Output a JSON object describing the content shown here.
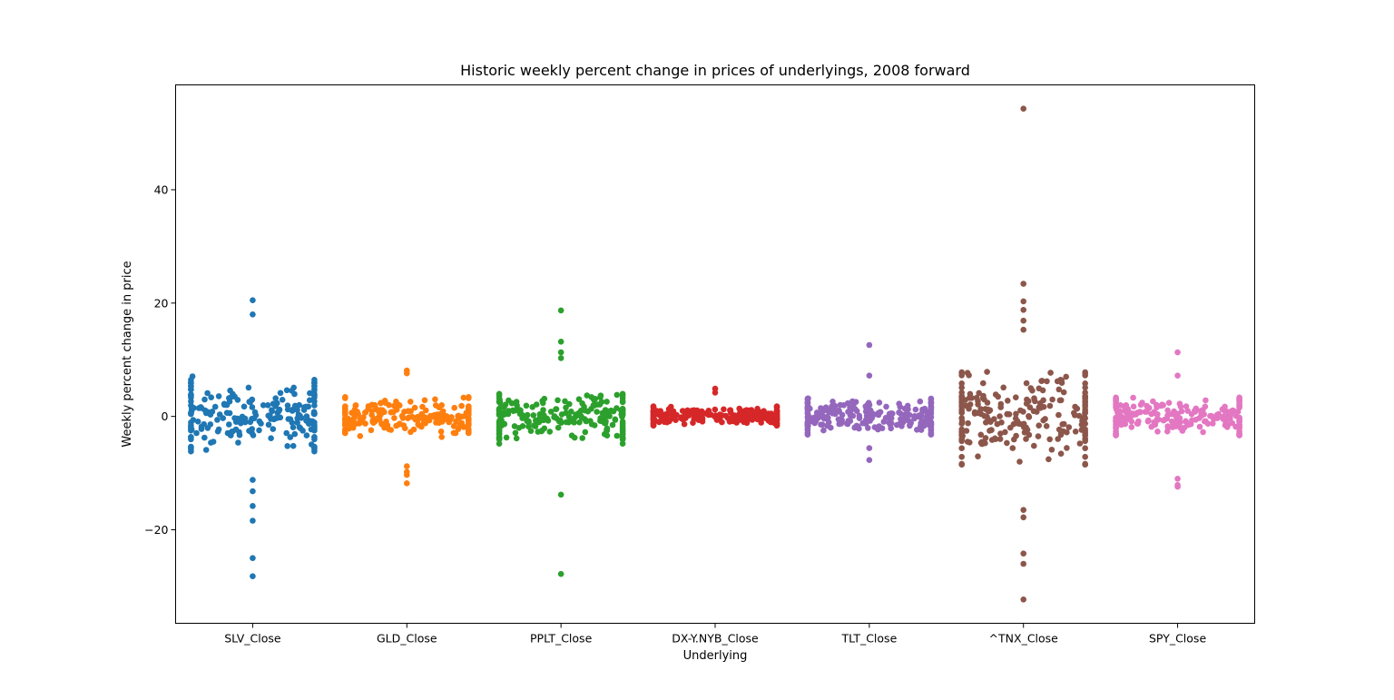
{
  "chart_data": {
    "type": "scatter",
    "title": "Historic weekly percent change in prices of underlyings, 2008 forward",
    "xlabel": "Underlying",
    "ylabel": "Weekly percent change in price",
    "ylim": [
      -36.5,
      58.5
    ],
    "yticks": [
      -20,
      0,
      20,
      40
    ],
    "ytick_labels": [
      "−20",
      "0",
      "20",
      "40"
    ],
    "grid": false,
    "legend": "none",
    "categories": [
      "SLV_Close",
      "GLD_Close",
      "PPLT_Close",
      "DX-Y.NYB_Close",
      "TLT_Close",
      "^TNX_Close",
      "SPY_Close"
    ],
    "series": [
      {
        "category": "SLV_Close",
        "color": "#1f77b4",
        "min": -28.2,
        "max": 20.5,
        "outliers": [
          20.5,
          18.0,
          -11.2,
          -13.2,
          -15.8,
          -18.4,
          -25.0,
          -28.2
        ],
        "body_half_range": 7.7
      },
      {
        "category": "GLD_Close",
        "color": "#ff7f0e",
        "min": -11.8,
        "max": 8.1,
        "outliers": [
          8.1,
          7.6,
          -8.8,
          -9.8,
          -10.3,
          -11.8
        ],
        "body_half_range": 4.0
      },
      {
        "category": "PPLT_Close",
        "color": "#2ca02c",
        "min": -27.8,
        "max": 18.7,
        "outliers": [
          18.7,
          13.2,
          11.3,
          10.3,
          -13.8,
          -27.8
        ],
        "body_half_range": 5.5
      },
      {
        "category": "DX-Y.NYB_Close",
        "color": "#d62728",
        "min": -2.8,
        "max": 4.9,
        "outliers": [
          4.9,
          4.2
        ],
        "body_half_range": 2.0
      },
      {
        "category": "TLT_Close",
        "color": "#9467bd",
        "min": -7.7,
        "max": 12.6,
        "outliers": [
          12.6,
          7.2,
          -5.6,
          -7.7
        ],
        "body_half_range": 3.8
      },
      {
        "category": "^TNX_Close",
        "color": "#8c564b",
        "min": -32.3,
        "max": 54.3,
        "outliers": [
          54.3,
          23.4,
          20.3,
          18.8,
          16.9,
          15.3,
          -16.5,
          -17.8,
          -24.2,
          -26.0,
          -32.3
        ],
        "body_half_range": 9.5
      },
      {
        "category": "SPY_Close",
        "color": "#e377c2",
        "min": -12.4,
        "max": 11.3,
        "outliers": [
          11.3,
          7.2,
          -11.0,
          -12.1,
          -12.4
        ],
        "body_half_range": 4.0
      }
    ]
  }
}
